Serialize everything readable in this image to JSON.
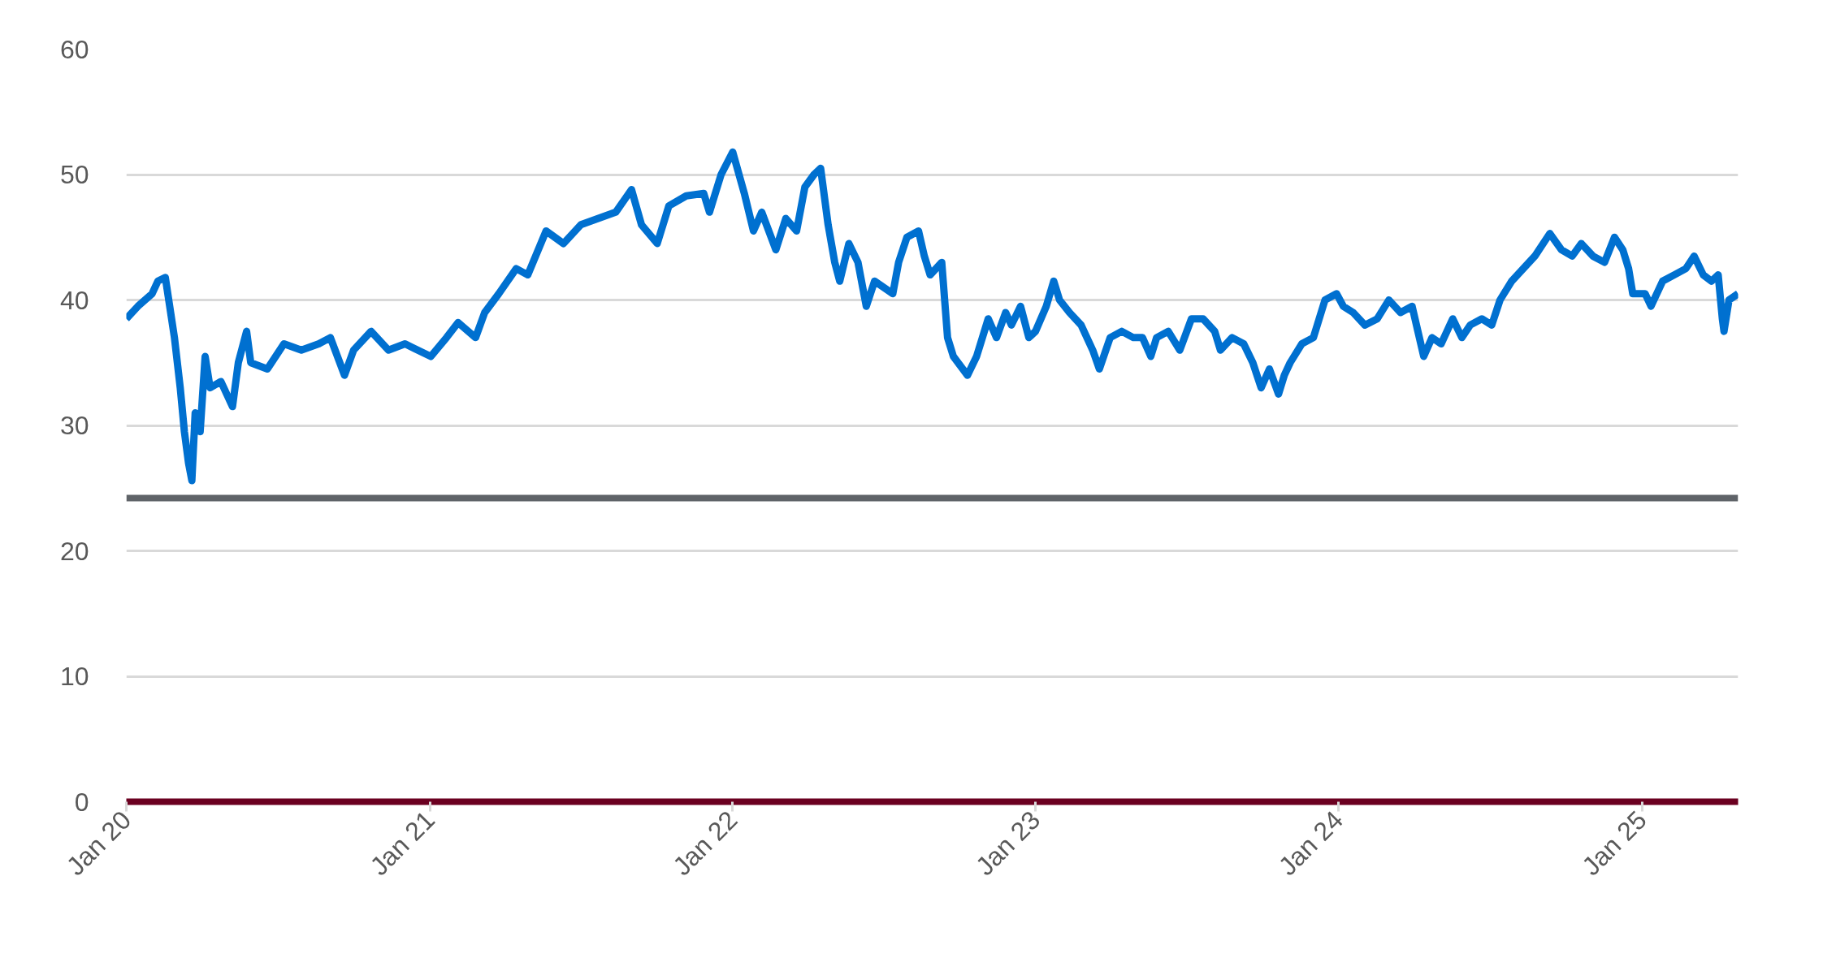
{
  "chart_data": {
    "type": "line",
    "x": [
      "2020-01-01",
      "2020-01-15",
      "2020-02-01",
      "2020-02-08",
      "2020-02-17",
      "2020-02-28",
      "2020-03-06",
      "2020-03-11",
      "2020-03-16",
      "2020-03-20",
      "2020-03-24",
      "2020-03-30",
      "2020-04-05",
      "2020-04-11",
      "2020-04-24",
      "2020-05-08",
      "2020-05-15",
      "2020-05-25",
      "2020-05-30",
      "2020-06-19",
      "2020-07-09",
      "2020-07-30",
      "2020-08-20",
      "2020-09-03",
      "2020-09-20",
      "2020-10-01",
      "2020-10-22",
      "2020-11-12",
      "2020-12-02",
      "2021-01-02",
      "2021-01-21",
      "2021-02-04",
      "2021-02-25",
      "2021-03-08",
      "2021-03-25",
      "2021-04-15",
      "2021-04-29",
      "2021-05-21",
      "2021-06-11",
      "2021-07-02",
      "2021-07-23",
      "2021-08-13",
      "2021-09-01",
      "2021-09-13",
      "2021-10-02",
      "2021-10-16",
      "2021-11-06",
      "2021-11-27",
      "2021-12-04",
      "2021-12-18",
      "2022-01-01",
      "2022-01-15",
      "2022-01-26",
      "2022-02-05",
      "2022-02-22",
      "2022-03-06",
      "2022-03-19",
      "2022-03-29",
      "2022-04-09",
      "2022-04-17",
      "2022-04-26",
      "2022-05-04",
      "2022-05-10",
      "2022-05-21",
      "2022-06-01",
      "2022-06-11",
      "2022-06-21",
      "2022-07-02",
      "2022-07-13",
      "2022-07-20",
      "2022-07-30",
      "2022-08-13",
      "2022-08-20",
      "2022-08-27",
      "2022-09-10",
      "2022-09-17",
      "2022-09-24",
      "2022-10-11",
      "2022-10-22",
      "2022-10-29",
      "2022-11-05",
      "2022-11-15",
      "2022-11-26",
      "2022-12-03",
      "2022-12-14",
      "2022-12-24",
      "2023-01-01",
      "2023-01-14",
      "2023-01-23",
      "2023-01-30",
      "2023-02-11",
      "2023-02-25",
      "2023-03-11",
      "2023-03-19",
      "2023-04-01",
      "2023-04-15",
      "2023-04-29",
      "2023-05-10",
      "2023-05-20",
      "2023-05-27",
      "2023-06-10",
      "2023-06-24",
      "2023-07-08",
      "2023-07-22",
      "2023-08-05",
      "2023-08-12",
      "2023-08-26",
      "2023-09-09",
      "2023-09-20",
      "2023-09-30",
      "2023-10-10",
      "2023-10-21",
      "2023-10-28",
      "2023-11-04",
      "2023-11-18",
      "2023-12-02",
      "2023-12-16",
      "2023-12-30",
      "2024-01-07",
      "2024-01-19",
      "2024-02-02",
      "2024-02-17",
      "2024-03-02",
      "2024-03-16",
      "2024-03-30",
      "2024-04-06",
      "2024-04-13",
      "2024-04-23",
      "2024-05-04",
      "2024-05-18",
      "2024-05-29",
      "2024-06-08",
      "2024-06-22",
      "2024-07-04",
      "2024-07-14",
      "2024-07-28",
      "2024-08-11",
      "2024-08-25",
      "2024-09-12",
      "2024-09-26",
      "2024-10-09",
      "2024-10-20",
      "2024-11-03",
      "2024-11-17",
      "2024-11-29",
      "2024-12-09",
      "2024-12-16",
      "2024-12-21",
      "2025-01-05",
      "2025-01-12",
      "2025-01-26",
      "2025-02-09",
      "2025-02-23",
      "2025-03-05",
      "2025-03-16",
      "2025-03-26",
      "2025-04-03",
      "2025-04-08",
      "2025-04-10",
      "2025-04-16",
      "2025-04-27"
    ],
    "series": [
      {
        "color": "#0070d0",
        "values": [
          38.5,
          39.5,
          40.5,
          41.5,
          41.8,
          37,
          33,
          29.5,
          27,
          25.6,
          31,
          29.5,
          35.5,
          33,
          33.5,
          31.5,
          35,
          37.5,
          35,
          34.5,
          36.5,
          36,
          36.5,
          37,
          34,
          36,
          37.5,
          36,
          36.5,
          35.5,
          37,
          38.2,
          37,
          39,
          40.5,
          42.5,
          42,
          45.5,
          44.5,
          46,
          46.5,
          47,
          48.8,
          46,
          44.5,
          47.5,
          48.3,
          48.5,
          47,
          50,
          51.8,
          48.5,
          45.5,
          47,
          44,
          46.5,
          45.5,
          49,
          50,
          50.5,
          46,
          43,
          41.5,
          44.5,
          43,
          39.5,
          41.5,
          41,
          40.5,
          43,
          45,
          45.5,
          43.5,
          42,
          43,
          37,
          35.5,
          34,
          35.5,
          37,
          38.5,
          37,
          39,
          38,
          39.5,
          37,
          37.5,
          39.5,
          41.5,
          40,
          39,
          38,
          36,
          34.5,
          37,
          37.5,
          37,
          37,
          35.5,
          37,
          37.5,
          36,
          38.5,
          38.5,
          37.5,
          36,
          37,
          36.5,
          35,
          33,
          34.5,
          32.5,
          34,
          35,
          36.5,
          37,
          40,
          40.5,
          39.5,
          39,
          38,
          38.5,
          40,
          39,
          39.5,
          37.5,
          35.5,
          37,
          36.5,
          38.5,
          37,
          38,
          38.5,
          38,
          40,
          41.5,
          42.5,
          43.5,
          45.3,
          44,
          43.5,
          44.5,
          43.5,
          43,
          45,
          44,
          42.5,
          40.5,
          40.5,
          39.5,
          41.5,
          42,
          42.5,
          43.5,
          42,
          41.5,
          42,
          38.5,
          37.5,
          40,
          40.5
        ]
      }
    ],
    "xlim": [
      "2020-01-01",
      "2025-04-27"
    ],
    "xticks": [
      {
        "value": "2020-01-01",
        "label": "Jan 20"
      },
      {
        "value": "2021-01-01",
        "label": "Jan 21"
      },
      {
        "value": "2022-01-01",
        "label": "Jan 22"
      },
      {
        "value": "2023-01-01",
        "label": "Jan 23"
      },
      {
        "value": "2024-01-01",
        "label": "Jan 24"
      },
      {
        "value": "2025-01-01",
        "label": "Jan 25"
      }
    ],
    "ylim": [
      0,
      60
    ],
    "yticks": [
      0,
      10,
      20,
      30,
      40,
      50,
      60
    ],
    "ref_lines": [
      {
        "axis": "y",
        "value": 24.2,
        "color": "#5f6368"
      }
    ],
    "grid": "y",
    "marker": "none",
    "line_style": "solid"
  }
}
